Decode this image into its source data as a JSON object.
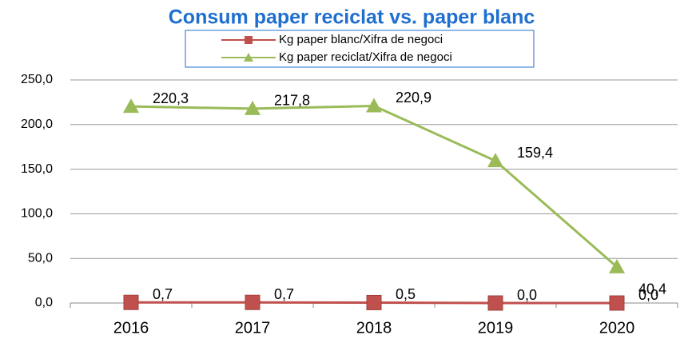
{
  "chart_data": {
    "type": "line",
    "title": "Consum paper reciclat vs. paper blanc",
    "categories": [
      "2016",
      "2017",
      "2018",
      "2019",
      "2020"
    ],
    "series": [
      {
        "name": "Kg paper blanc/Xifra de negoci",
        "color": "#c0504d",
        "marker": "square",
        "values": [
          0.7,
          0.7,
          0.5,
          0.0,
          0.0
        ],
        "value_labels": [
          "0,7",
          "0,7",
          "0,5",
          "0,0",
          "0,0"
        ]
      },
      {
        "name": "Kg paper reciclat/Xifra de negoci",
        "color": "#9bbb59",
        "marker": "triangle",
        "values": [
          220.3,
          217.8,
          220.9,
          159.4,
          40.4
        ],
        "value_labels": [
          "220,3",
          "217,8",
          "220,9",
          "159,4",
          "40,4"
        ]
      }
    ],
    "ylim": [
      0,
      250
    ],
    "yticks": [
      {
        "value": 0,
        "label": "0,0"
      },
      {
        "value": 50,
        "label": "50,0"
      },
      {
        "value": 100,
        "label": "100,0"
      },
      {
        "value": 150,
        "label": "150,0"
      },
      {
        "value": 200,
        "label": "200,0"
      },
      {
        "value": 250,
        "label": "250,0"
      }
    ],
    "grid": true
  }
}
